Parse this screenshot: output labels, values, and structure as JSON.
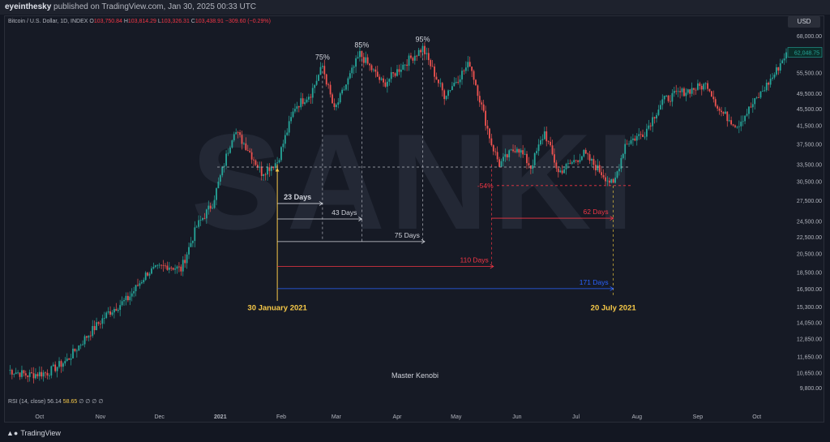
{
  "header": {
    "author": "eyeinthesky",
    "published_text": "published on TradingView.com, Jan 30, 2025 00:33 UTC"
  },
  "legend": {
    "symbol": "Bitcoin / U.S. Dollar, 1D, INDEX",
    "open_label": "O",
    "open_value": "103,750.84",
    "high_label": "H",
    "high_value": "103,814.29",
    "low_label": "L",
    "low_value": "103,326.31",
    "close_label": "C",
    "close_value": "103,438.91",
    "change": "−309.60 (−0.29%)"
  },
  "rsi": {
    "label": "RSI (14, close)",
    "value1": "56.14",
    "value2": "58.65",
    "na": "∅ ∅ ∅ ∅"
  },
  "price_axis": {
    "currency_button": "USD",
    "last_price": "62,048.75"
  },
  "watermark": "SANKI",
  "author_signature": "Master Kenobi",
  "footer": {
    "brand": "TradingView",
    "brand_icon": "tradingview-logo-icon"
  },
  "colors": {
    "up": "#26a69a",
    "down": "#ef5350",
    "background": "#161a25",
    "yellow": "#f7c948",
    "red_annotation": "#f23645",
    "blue_annotation": "#2962ff",
    "white_annotation": "#d1d4dc"
  },
  "chart_data": {
    "type": "candlestick",
    "title": "Bitcoin / U.S. Dollar, 1D, INDEX",
    "y_scale": "log",
    "x_ticks": [
      "Oct",
      "Nov",
      "Dec",
      "2021",
      "Feb",
      "Mar",
      "Apr",
      "May",
      "Jun",
      "Jul",
      "Aug",
      "Sep",
      "Oct"
    ],
    "y_ticks": [
      "68,000.00",
      "61,500.00",
      "55,500.00",
      "49,500.00",
      "45,500.00",
      "41,500.00",
      "37,500.00",
      "33,500.00",
      "30,500.00",
      "27,500.00",
      "24,500.00",
      "22,500.00",
      "20,500.00",
      "18,500.00",
      "16,900.00",
      "15,300.00",
      "14,050.00",
      "12,850.00",
      "11,650.00",
      "10,650.00",
      "9,800.00"
    ],
    "price_path": [
      {
        "date": "2020-09-15",
        "close": 10800
      },
      {
        "date": "2020-09-25",
        "close": 10500
      },
      {
        "date": "2020-10-05",
        "close": 10650
      },
      {
        "date": "2020-10-15",
        "close": 11400
      },
      {
        "date": "2020-10-25",
        "close": 13000
      },
      {
        "date": "2020-11-05",
        "close": 14800
      },
      {
        "date": "2020-11-15",
        "close": 16000
      },
      {
        "date": "2020-11-25",
        "close": 18500
      },
      {
        "date": "2020-12-05",
        "close": 19200
      },
      {
        "date": "2020-12-12",
        "close": 18800
      },
      {
        "date": "2020-12-20",
        "close": 23800
      },
      {
        "date": "2020-12-28",
        "close": 27000
      },
      {
        "date": "2021-01-08",
        "close": 40500
      },
      {
        "date": "2021-01-15",
        "close": 36500
      },
      {
        "date": "2021-01-22",
        "close": 32000
      },
      {
        "date": "2021-01-30",
        "close": 34000
      },
      {
        "date": "2021-02-08",
        "close": 46000
      },
      {
        "date": "2021-02-16",
        "close": 49500
      },
      {
        "date": "2021-02-22",
        "close": 57500
      },
      {
        "date": "2021-02-28",
        "close": 45000
      },
      {
        "date": "2021-03-13",
        "close": 61500
      },
      {
        "date": "2021-03-25",
        "close": 52000
      },
      {
        "date": "2021-04-05",
        "close": 58500
      },
      {
        "date": "2021-04-14",
        "close": 63500
      },
      {
        "date": "2021-04-25",
        "close": 49000
      },
      {
        "date": "2021-05-08",
        "close": 58500
      },
      {
        "date": "2021-05-12",
        "close": 50000
      },
      {
        "date": "2021-05-19",
        "close": 37500
      },
      {
        "date": "2021-05-23",
        "close": 33500
      },
      {
        "date": "2021-06-01",
        "close": 37000
      },
      {
        "date": "2021-06-08",
        "close": 33000
      },
      {
        "date": "2021-06-15",
        "close": 40000
      },
      {
        "date": "2021-06-22",
        "close": 32000
      },
      {
        "date": "2021-07-05",
        "close": 35500
      },
      {
        "date": "2021-07-20",
        "close": 29800
      },
      {
        "date": "2021-07-26",
        "close": 37500
      },
      {
        "date": "2021-08-05",
        "close": 40000
      },
      {
        "date": "2021-08-14",
        "close": 47500
      },
      {
        "date": "2021-08-22",
        "close": 49500
      },
      {
        "date": "2021-09-06",
        "close": 52000
      },
      {
        "date": "2021-09-12",
        "close": 45000
      },
      {
        "date": "2021-09-21",
        "close": 41500
      },
      {
        "date": "2021-10-01",
        "close": 48000
      },
      {
        "date": "2021-10-10",
        "close": 55000
      },
      {
        "date": "2021-10-16",
        "close": 62048.75
      }
    ],
    "annotations": {
      "peak_labels": [
        {
          "text": "75%",
          "date": "2021-02-22",
          "price": 57500
        },
        {
          "text": "85%",
          "date": "2021-03-14",
          "price": 61500
        },
        {
          "text": "95%",
          "date": "2021-04-14",
          "price": 63500
        }
      ],
      "drawdown_label": {
        "text": "-54%",
        "date": "2021-07-20",
        "price": 29800
      },
      "reference_price": 33000,
      "start_date": "2021-01-30",
      "start_label": "30 January 2021",
      "end_date": "2021-07-20",
      "end_label": "20 July 2021",
      "ranges": [
        {
          "label": "23 Days",
          "from": "2021-01-30",
          "to": "2021-02-22",
          "price": 27000,
          "color": "#d1d4dc"
        },
        {
          "label": "43 Days",
          "from": "2021-01-30",
          "to": "2021-03-14",
          "price": 24800,
          "color": "#d1d4dc"
        },
        {
          "label": "75 Days",
          "from": "2021-01-30",
          "to": "2021-04-15",
          "price": 21900,
          "color": "#d1d4dc"
        },
        {
          "label": "110 Days",
          "from": "2021-01-30",
          "to": "2021-05-20",
          "price": 19100,
          "color": "#f23645"
        },
        {
          "label": "62 Days",
          "from": "2021-05-19",
          "to": "2021-07-20",
          "price": 24900,
          "color": "#f23645"
        },
        {
          "label": "171 Days",
          "from": "2021-01-30",
          "to": "2021-07-20",
          "price": 16900,
          "color": "#2962ff"
        }
      ]
    }
  }
}
